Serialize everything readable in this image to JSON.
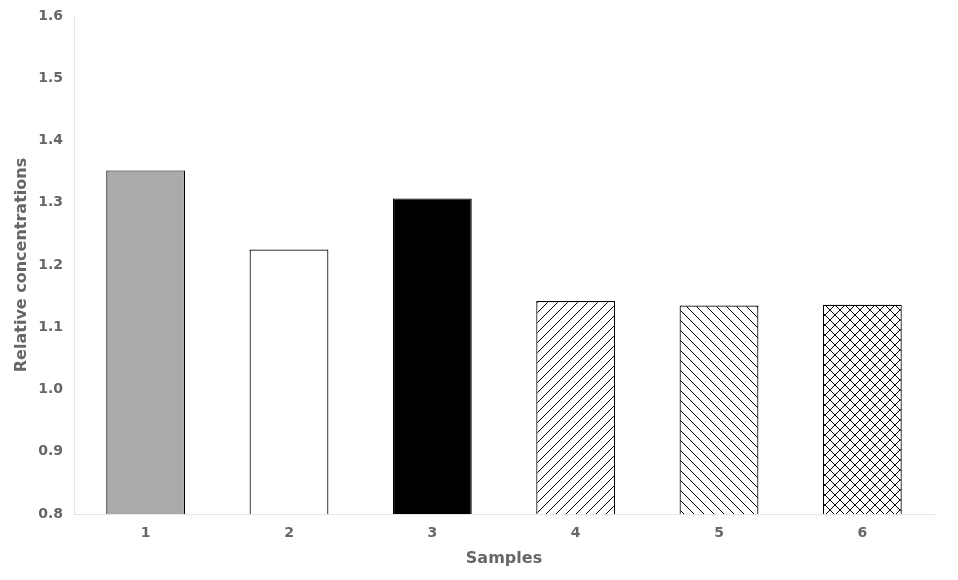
{
  "chart_data": {
    "type": "bar",
    "xlabel": "Samples",
    "ylabel": "Relative concentrations",
    "categories": [
      "1",
      "2",
      "3",
      "4",
      "5",
      "6"
    ],
    "values": [
      1.352,
      1.225,
      1.307,
      1.142,
      1.135,
      1.136
    ],
    "colors": [
      "#aaaaaa",
      "#ffffff",
      "#000000",
      "#ffffff",
      "#ffffff",
      "#ffffff"
    ],
    "ylim": [
      0.8,
      1.6
    ],
    "yticks": [
      0.8,
      0.9,
      {
        "value": 1.0,
        "label": "1.0"
      },
      1.1,
      1.2,
      1.3,
      1.4,
      1.5,
      1.6
    ],
    "grid": false
  }
}
